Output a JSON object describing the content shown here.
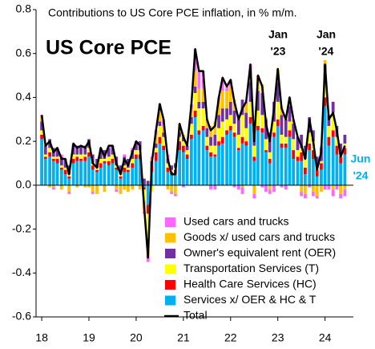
{
  "chart_data": {
    "type": "bar",
    "stacked": true,
    "title": "Contributions to US Core PCE inflation, in % m/m.",
    "subtitle": "US Core PCE",
    "annotations": [
      {
        "lines": [
          "Jan",
          "'23"
        ],
        "color": "#000000"
      },
      {
        "lines": [
          "Jan",
          "'24"
        ],
        "color": "#000000"
      },
      {
        "lines": [
          "Jun",
          "'24"
        ],
        "color": "#00b0f0"
      }
    ],
    "legend": "lower right",
    "xlim": [
      17.88,
      24.6
    ],
    "xticks": [
      18,
      19,
      20,
      21,
      22,
      23,
      24
    ],
    "ylim": [
      -0.6,
      0.8
    ],
    "yticks": [
      0.8,
      0.6,
      0.4,
      0.2,
      {
        "value": 0,
        "label": "0.0"
      },
      -0.2,
      -0.4,
      -0.6
    ],
    "x": [
      18.0,
      18.08,
      18.17,
      18.25,
      18.33,
      18.42,
      18.5,
      18.58,
      18.67,
      18.75,
      18.83,
      18.92,
      19.0,
      19.08,
      19.17,
      19.25,
      19.33,
      19.42,
      19.5,
      19.58,
      19.67,
      19.75,
      19.83,
      19.92,
      20.0,
      20.08,
      20.17,
      20.25,
      20.33,
      20.42,
      20.5,
      20.58,
      20.67,
      20.75,
      20.83,
      20.92,
      21.0,
      21.08,
      21.17,
      21.25,
      21.33,
      21.42,
      21.5,
      21.58,
      21.67,
      21.75,
      21.83,
      21.92,
      22.0,
      22.08,
      22.17,
      22.25,
      22.33,
      22.42,
      22.5,
      22.58,
      22.67,
      22.75,
      22.83,
      22.92,
      23.0,
      23.08,
      23.17,
      23.25,
      23.33,
      23.42,
      23.5,
      23.58,
      23.67,
      23.75,
      23.83,
      23.92,
      24.0,
      24.08,
      24.17,
      24.25,
      24.33,
      24.42
    ],
    "series": [
      {
        "name": "Used cars and trucks",
        "color": "#ff66ff",
        "values": [
          0.01,
          0,
          0,
          -0.01,
          0,
          0.01,
          0,
          -0.01,
          0.01,
          0,
          0,
          0,
          0,
          -0.01,
          0,
          0.01,
          0,
          0.01,
          0,
          -0.01,
          0,
          0.01,
          0,
          0.01,
          0,
          0,
          -0.01,
          -0.03,
          0.01,
          0.02,
          0.03,
          0.03,
          0.02,
          -0.01,
          -0.01,
          0,
          -0.01,
          0,
          0.02,
          0.1,
          0.08,
          0.08,
          0,
          -0.02,
          -0.02,
          0.01,
          0.06,
          0.02,
          0.03,
          -0.01,
          -0.02,
          -0.03,
          0.01,
          0.03,
          -0.02,
          0.01,
          -0.01,
          -0.03,
          -0.02,
          -0.03,
          0,
          -0.01,
          -0.02,
          0.02,
          0.01,
          0,
          -0.02,
          -0.02,
          -0.01,
          -0.02,
          -0.01,
          0.01,
          -0.02,
          -0.02,
          -0.03,
          -0.02,
          -0.02,
          -0.03
        ]
      },
      {
        "name": "Goods x/ used cars and trucks",
        "color": "#ffc000",
        "values": [
          0.02,
          0,
          -0.01,
          -0.01,
          0,
          -0.02,
          0,
          -0.03,
          0,
          -0.01,
          0,
          -0.01,
          -0.01,
          -0.03,
          -0.04,
          0,
          -0.03,
          0,
          0,
          -0.02,
          -0.04,
          -0.02,
          -0.03,
          -0.02,
          0,
          -0.02,
          -0.05,
          -0.07,
          0.01,
          0.04,
          0.05,
          0.03,
          -0.02,
          -0.03,
          -0.04,
          0.04,
          0.01,
          0,
          0.04,
          0.07,
          0.06,
          0.06,
          0.04,
          0.05,
          0.06,
          0.07,
          0.08,
          0.08,
          0.07,
          0.05,
          0.02,
          -0.01,
          0.04,
          0.05,
          -0.04,
          0.06,
          0.04,
          0.01,
          -0.02,
          0,
          0.06,
          0.04,
          0.02,
          0.02,
          0.01,
          0,
          -0.03,
          -0.04,
          0,
          -0.03,
          -0.05,
          -0.03,
          0.02,
          0,
          -0.02,
          0,
          -0.04,
          -0.02
        ]
      },
      {
        "name": "Owner's equivalent rent (OER)",
        "color": "#7030a0",
        "values": [
          0.04,
          0.04,
          0.04,
          0.04,
          0.04,
          0.04,
          0.04,
          0.04,
          0.04,
          0.04,
          0.04,
          0.04,
          0.04,
          0.04,
          0.04,
          0.04,
          0.04,
          0.04,
          0.04,
          0.04,
          0.04,
          0.04,
          0.04,
          0.04,
          0.04,
          0.04,
          0.03,
          0.02,
          0.02,
          0.02,
          0.02,
          0.02,
          0.02,
          0.02,
          0.02,
          0.02,
          0.02,
          0.02,
          0.03,
          0.03,
          0.03,
          0.03,
          0.04,
          0.04,
          0.05,
          0.06,
          0.06,
          0.05,
          0.06,
          0.06,
          0.07,
          0.07,
          0.07,
          0.09,
          0.08,
          0.09,
          0.1,
          0.09,
          0.09,
          0.09,
          0.09,
          0.09,
          0.08,
          0.07,
          0.07,
          0.06,
          0.06,
          0.06,
          0.07,
          0.05,
          0.05,
          0.06,
          0.07,
          0.05,
          0.05,
          0.05,
          0.04,
          0.04
        ]
      },
      {
        "name": "Transportation Services (T)",
        "color": "#ffff00",
        "values": [
          0.02,
          0.01,
          0.02,
          0.01,
          0.01,
          0.01,
          0.01,
          0.01,
          0.02,
          0.01,
          0.02,
          0.01,
          0.02,
          0.01,
          0.01,
          0.02,
          0.01,
          0.02,
          0.02,
          0.01,
          0.01,
          0.01,
          0.01,
          0.02,
          0.02,
          0.02,
          -0.05,
          -0.12,
          -0.03,
          0.02,
          0.05,
          0.04,
          0.02,
          0.01,
          0.01,
          0.02,
          0.02,
          0.02,
          0.05,
          0.08,
          0.1,
          0.08,
          0.04,
          0.03,
          0.04,
          0.06,
          0.07,
          0.05,
          0.05,
          0.04,
          0.06,
          0.1,
          0.06,
          0.07,
          0.05,
          0.07,
          0.06,
          0.05,
          0.03,
          0.05,
          0.08,
          0.04,
          0.03,
          0.04,
          0.05,
          0.03,
          0.02,
          0.04,
          0.05,
          0.04,
          0.01,
          0.01,
          0.08,
          0.05,
          0.08,
          0.04,
          0.02,
          0.02
        ]
      },
      {
        "name": "Health Care Services (HC)",
        "color": "#ff0000",
        "values": [
          0.02,
          0.01,
          0.02,
          0.01,
          0.02,
          0.01,
          0.02,
          0.01,
          0.02,
          0.02,
          0.01,
          0.02,
          0.02,
          0.02,
          0.01,
          0.02,
          0.01,
          0.02,
          0.02,
          0.01,
          0.01,
          0.02,
          0.01,
          0.02,
          0.02,
          0.02,
          -0.01,
          -0.04,
          0.03,
          0.04,
          0.03,
          0.02,
          0.02,
          0.01,
          0.02,
          0.04,
          0.03,
          0.02,
          0.02,
          0.03,
          0.02,
          0.02,
          0.02,
          0.02,
          0.01,
          0.02,
          0.03,
          0.02,
          0.02,
          0.02,
          0.01,
          0.03,
          0.02,
          0.03,
          0.02,
          0.02,
          0.02,
          0.01,
          0.02,
          0.02,
          0.03,
          0.02,
          0.02,
          0.03,
          0.04,
          0.02,
          0.04,
          0.03,
          0.03,
          0.04,
          0.03,
          0.03,
          0.04,
          0.04,
          0.03,
          0.04,
          0.03,
          0.03
        ]
      },
      {
        "name": "Services x/ OER & HC & T",
        "color": "#00b0f0",
        "values": [
          0.21,
          0.12,
          0.13,
          0.11,
          0.1,
          0.07,
          0.05,
          0.03,
          0.1,
          0.11,
          0.11,
          0.11,
          0.13,
          0.07,
          0.06,
          0.08,
          0.1,
          0.09,
          0.1,
          0.07,
          0.03,
          0.06,
          0.06,
          0.08,
          0.12,
          0.12,
          -0.01,
          -0.09,
          0.06,
          0.11,
          0.19,
          0.16,
          0.06,
          0.05,
          0.05,
          0.16,
          0.15,
          0.12,
          0.21,
          0.31,
          0.23,
          0.25,
          0.16,
          0.13,
          0.13,
          0.18,
          0.19,
          0.23,
          0.25,
          0.22,
          0.16,
          0.19,
          0.18,
          0.28,
          0.11,
          0.25,
          0.24,
          0.15,
          0.1,
          0.22,
          0.27,
          0.17,
          0.17,
          0.22,
          0.12,
          0.11,
          0.11,
          0.05,
          0.16,
          0.12,
          0.04,
          0.07,
          0.36,
          0.18,
          0.22,
          0.14,
          0.1,
          0.14
        ]
      },
      {
        "name": "Total",
        "color": "#000000",
        "type": "line",
        "values": [
          0.32,
          0.18,
          0.2,
          0.15,
          0.17,
          0.12,
          0.12,
          0.05,
          0.19,
          0.17,
          0.18,
          0.17,
          0.2,
          0.1,
          0.08,
          0.17,
          0.13,
          0.18,
          0.18,
          0.1,
          0.05,
          0.12,
          0.09,
          0.15,
          0.2,
          0.18,
          -0.1,
          -0.33,
          0.1,
          0.25,
          0.37,
          0.3,
          0.12,
          0.05,
          0.05,
          0.28,
          0.22,
          0.18,
          0.37,
          0.62,
          0.52,
          0.52,
          0.3,
          0.25,
          0.27,
          0.4,
          0.49,
          0.45,
          0.48,
          0.38,
          0.3,
          0.35,
          0.38,
          0.55,
          0.2,
          0.5,
          0.45,
          0.28,
          0.2,
          0.35,
          0.53,
          0.35,
          0.3,
          0.4,
          0.3,
          0.22,
          0.18,
          0.12,
          0.3,
          0.2,
          0.07,
          0.15,
          0.55,
          0.3,
          0.33,
          0.25,
          0.13,
          0.18
        ]
      }
    ]
  }
}
